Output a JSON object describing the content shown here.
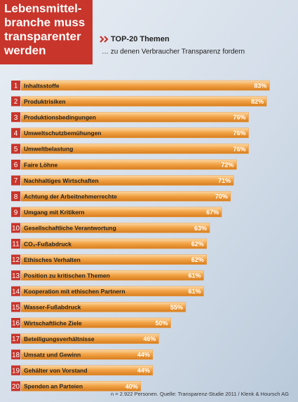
{
  "chart_data": {
    "type": "bar",
    "orientation": "horizontal",
    "title": [
      "Lebensmittel-",
      "branche muss",
      "transparenter",
      "werden"
    ],
    "subtitle": "TOP-20 Themen",
    "subtitle2": "… zu denen Verbraucher Transparenz fordern",
    "note": "n = 2.922 Personen. Quelle: Transparenz-Studie 2011 / Klenk & Hoursch AG",
    "ranks": [
      "1",
      "2",
      "3",
      "4",
      "5",
      "6",
      "7",
      "8",
      "9",
      "10",
      "11",
      "12",
      "13",
      "14",
      "15",
      "16",
      "17",
      "18",
      "19",
      "20"
    ],
    "categories": [
      "Inhaltsstoffe",
      "Produktrisiken",
      "Produktionsbedingungen",
      "Umweltschutzbemühungen",
      "Umweltbelastung",
      "Faire Löhne",
      "Nachhaltiges Wirtschaften",
      "Achtung der Arbeitnehmerrechte",
      "Umgang mit Kritikern",
      "Gesellschaftliche Verantwortung",
      "CO₂-Fußabdruck",
      "Ethisches Verhalten",
      "Position zu kritischen Themen",
      "Kooperation mit ethischen Partnern",
      "Wasser-Fußabdruck",
      "Wirtschaftliche Ziele",
      "Beteiligungsverhältnisse",
      "Umsatz und Gewinn",
      "Gehälter von Vorstand",
      "Spenden an Parteien"
    ],
    "values": [
      83,
      82,
      76,
      76,
      76,
      72,
      71,
      70,
      67,
      63,
      62,
      62,
      61,
      61,
      55,
      50,
      46,
      44,
      44,
      40
    ],
    "value_labels": [
      "83%",
      "82%",
      "76%",
      "76%",
      "76%",
      "72%",
      "71%",
      "70%",
      "67%",
      "63%",
      "62%",
      "62%",
      "61%",
      "61%",
      "55%",
      "50%",
      "46%",
      "44%",
      "44%",
      "40%"
    ],
    "color": "#ee9a3a",
    "rank_color": "#c8352b"
  }
}
